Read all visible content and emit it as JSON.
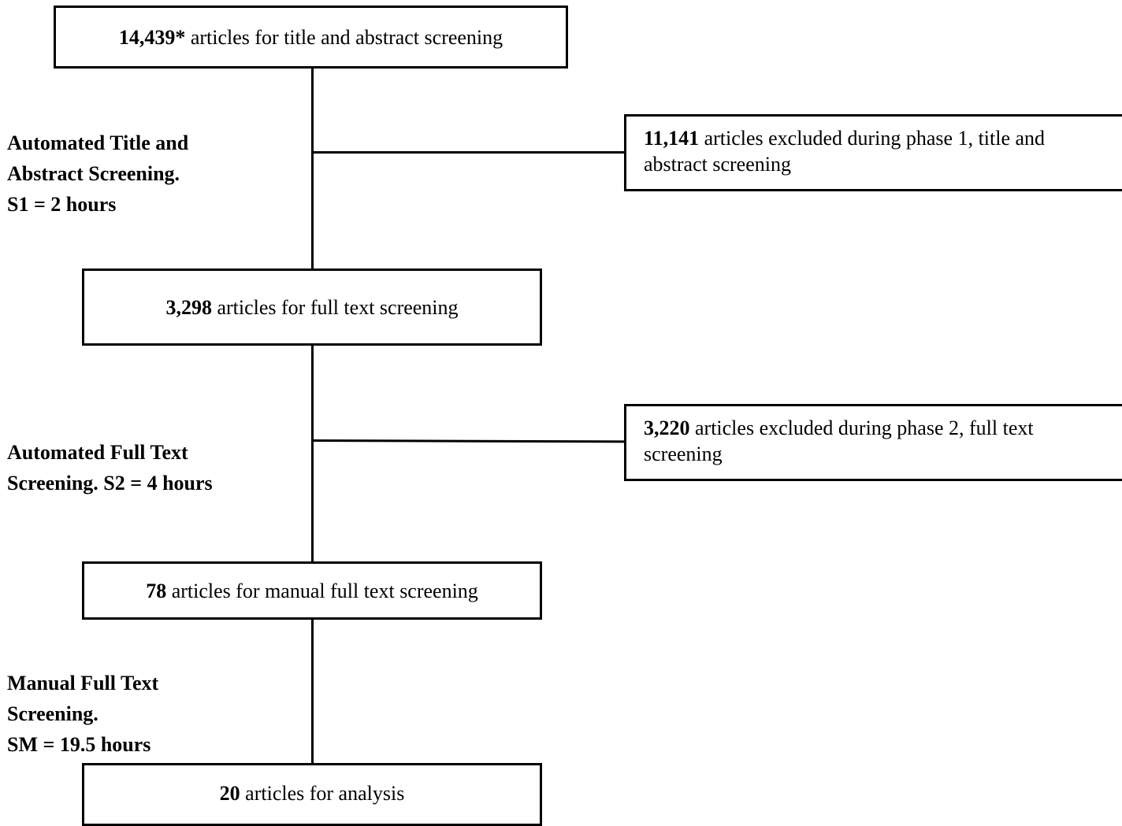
{
  "flow": {
    "start": {
      "count": "14,439*",
      "text": " articles for title and abstract screening"
    },
    "stage1_label": "Automated Title and\nAbstract Screening.\nS1 = 2 hours",
    "excluded1": {
      "count": "11,141",
      "text": " articles excluded during phase 1, title and abstract screening"
    },
    "full_text": {
      "count": "3,298",
      "text": " articles for full text screening"
    },
    "stage2_label": "Automated Full Text\nScreening. S2 = 4 hours",
    "excluded2": {
      "count": "3,220",
      "text": " articles excluded during phase 2, full text screening"
    },
    "manual": {
      "count": "78",
      "text": " articles for manual full text screening"
    },
    "stage3_label": "Manual Full Text\nScreening.\nSM = 19.5 hours",
    "final": {
      "count": "20",
      "text": " articles for analysis"
    }
  }
}
